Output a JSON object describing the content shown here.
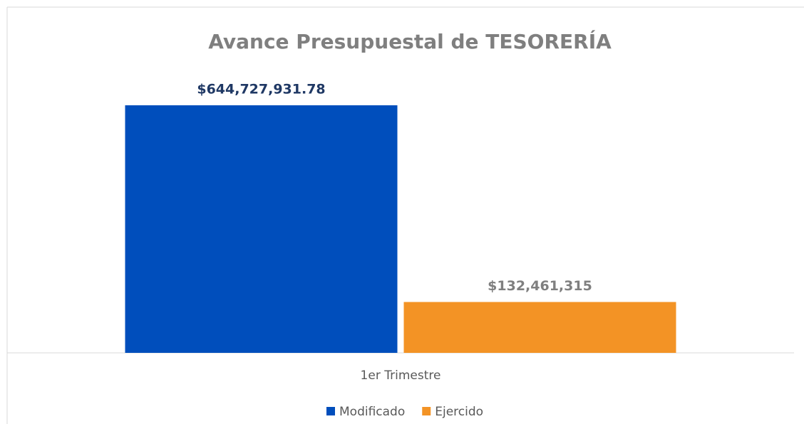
{
  "chart_data": {
    "type": "bar",
    "title": "Avance Presupuestal de TESORERÍA",
    "categories": [
      "1er Trimestre"
    ],
    "series": [
      {
        "name": "Modificado",
        "color": "#004ebc",
        "values": [
          644727931.78
        ],
        "value_labels": [
          "$644,727,931.78"
        ],
        "label_color": "#1f3864"
      },
      {
        "name": "Ejercido",
        "color": "#f39325",
        "values": [
          132461315
        ],
        "value_labels": [
          "$132,461,315"
        ],
        "label_color": "#7f7f7f"
      }
    ],
    "legend": "bottom"
  }
}
